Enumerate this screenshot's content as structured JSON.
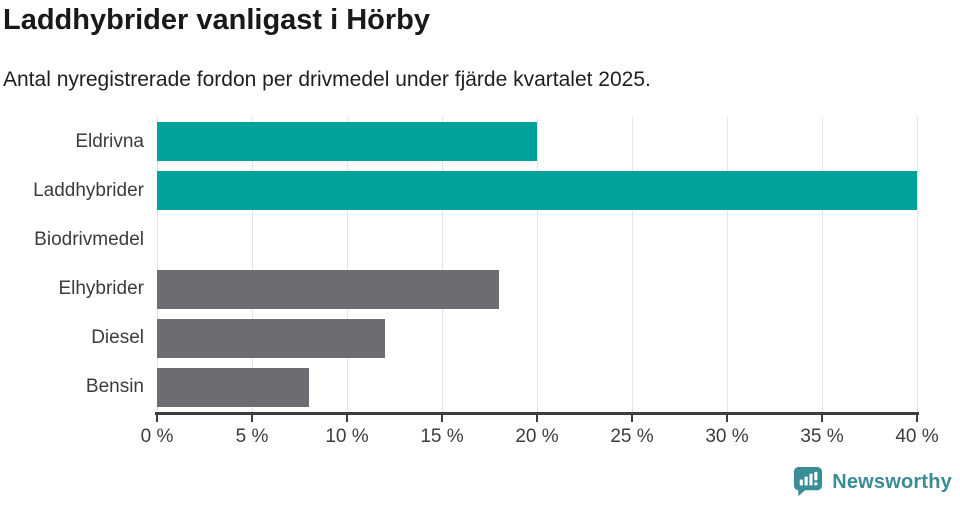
{
  "header": {
    "title": "Laddhybrider vanligast i Hörby",
    "subtitle": "Antal nyregistrerade fordon per drivmedel under fjärde kvartalet 2025."
  },
  "chart_data": {
    "type": "bar",
    "orientation": "horizontal",
    "title": "Laddhybrider vanligast i Hörby",
    "subtitle": "Antal nyregistrerade fordon per drivmedel under fjärde kvartalet 2025.",
    "categories": [
      "Eldrivna",
      "Laddhybrider",
      "Biodrivmedel",
      "Elhybrider",
      "Diesel",
      "Bensin"
    ],
    "values": [
      20,
      40,
      0,
      18,
      12,
      8
    ],
    "unit": "%",
    "bar_colors": [
      "#00a29b",
      "#00a29b",
      "#00a29b",
      "#6c6c72",
      "#6c6c72",
      "#6c6c72"
    ],
    "xlim": [
      0,
      40
    ],
    "xticks": [
      0,
      5,
      10,
      15,
      20,
      25,
      30,
      35,
      40
    ],
    "xtick_labels": [
      "0 %",
      "5 %",
      "10 %",
      "15 %",
      "20 %",
      "25 %",
      "30 %",
      "35 %",
      "40 %"
    ],
    "xlabel": "",
    "ylabel": "",
    "grid": true,
    "legend": false,
    "colors": {
      "accent_teal": "#00a29b",
      "neutral_gray": "#6c6c72",
      "gridline": "#e3e3e3",
      "axis": "#3d3d3d",
      "label_text": "#3c3c3c"
    }
  },
  "footer": {
    "brand": "Newsworthy",
    "brand_color": "#3a8c95",
    "logo_color": "#3a8c95",
    "logo_icon": "newsworthy-speech-bubble-bar-chart"
  }
}
